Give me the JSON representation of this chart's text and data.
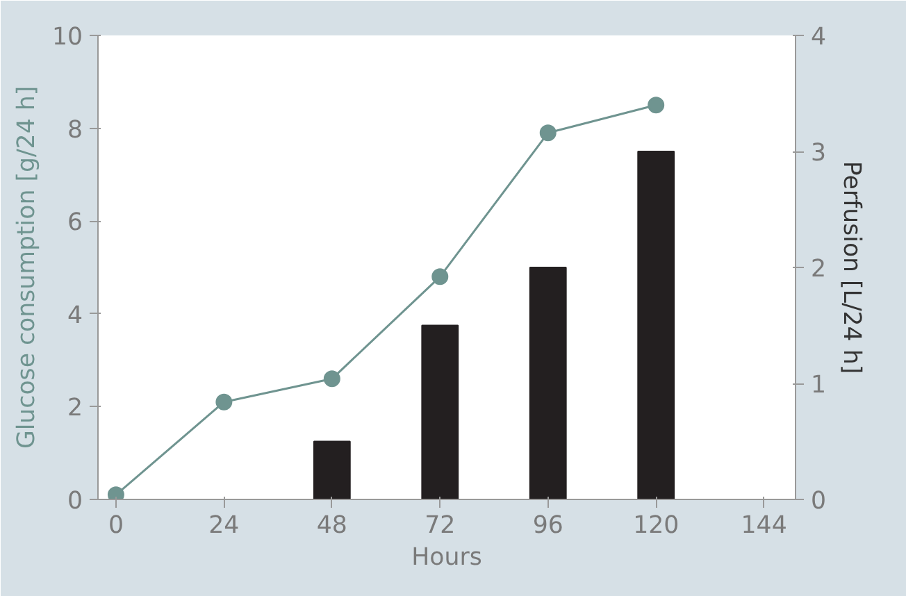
{
  "chart_data": {
    "type": "line",
    "xlabel": "Hours",
    "ylabel": "Glucose consumption [g/24 h]",
    "y2label": "Perfusion [L/24 h]",
    "xlim": [
      -4,
      151
    ],
    "xticks": [
      0,
      24,
      48,
      72,
      96,
      120,
      144
    ],
    "ylim": [
      0,
      10
    ],
    "yticks": [
      0,
      2,
      4,
      6,
      8,
      10
    ],
    "y2lim": [
      0,
      4
    ],
    "y2ticks": [
      0,
      1,
      2,
      3,
      4
    ],
    "series": [
      {
        "color": "#6f9490",
        "marker": "circle",
        "x": [
          0,
          24,
          48,
          72,
          96,
          120
        ],
        "values": [
          0.1,
          2.1,
          2.6,
          4.8,
          7.9,
          8.5
        ]
      },
      {
        "type": "bar",
        "axis": "y2",
        "color": "#231f20",
        "x": [
          48,
          72,
          96,
          120
        ],
        "values": [
          0.5,
          1.5,
          2.0,
          3.0
        ]
      }
    ]
  }
}
